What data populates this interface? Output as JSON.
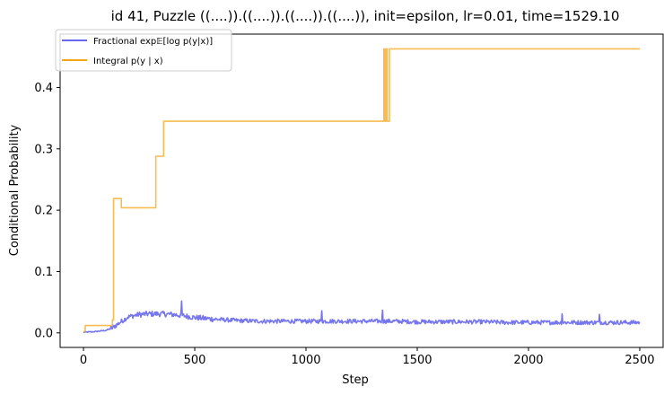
{
  "chart_data": {
    "type": "line",
    "title": "id 41, Puzzle ((....)).((....)).((....)).((....)), init=epsilon, lr=0.01, time=1529.10",
    "xlabel": "Step",
    "ylabel": "Conditional Probability",
    "xlim": [
      -105,
      2605
    ],
    "ylim": [
      -0.0237,
      0.487
    ],
    "xticks": [
      0,
      500,
      1000,
      1500,
      2000,
      2500
    ],
    "yticks": [
      0.0,
      0.1,
      0.2,
      0.3,
      0.4
    ],
    "xtick_labels": [
      "0",
      "500",
      "1000",
      "1500",
      "2000",
      "2500"
    ],
    "ytick_labels": [
      "0.0",
      "0.1",
      "0.2",
      "0.3",
      "0.4"
    ],
    "grid": false,
    "legend_position": "top-left",
    "series": [
      {
        "name": "Fractional exp𝔼[log p(y|x)]",
        "color": "#6666ee",
        "style": "noisy",
        "x": [
          0,
          50,
          100,
          130,
          160,
          200,
          250,
          300,
          350,
          400,
          450,
          500,
          600,
          700,
          800,
          900,
          1000,
          1100,
          1200,
          1300,
          1400,
          1500,
          1600,
          1700,
          1800,
          1900,
          2000,
          2100,
          2200,
          2300,
          2400,
          2500
        ],
        "values": [
          0.001,
          0.002,
          0.004,
          0.008,
          0.016,
          0.026,
          0.03,
          0.031,
          0.031,
          0.03,
          0.028,
          0.025,
          0.022,
          0.02,
          0.019,
          0.019,
          0.019,
          0.019,
          0.019,
          0.019,
          0.019,
          0.018,
          0.018,
          0.018,
          0.018,
          0.017,
          0.017,
          0.017,
          0.017,
          0.017,
          0.017,
          0.017
        ],
        "spikes": [
          [
            440,
            0.052
          ],
          [
            1070,
            0.036
          ],
          [
            1345,
            0.037
          ],
          [
            2150,
            0.031
          ],
          [
            2320,
            0.03
          ]
        ]
      },
      {
        "name": "Integral p(y | x)",
        "color": "#f6a516",
        "style": "steps",
        "x": [
          0,
          8,
          10,
          120,
          130,
          135,
          170,
          325,
          350,
          360,
          1345,
          1350,
          1355,
          1360,
          1365,
          1375,
          1380,
          2500
        ],
        "values": [
          0.002,
          0.012,
          0.012,
          0.012,
          0.021,
          0.219,
          0.204,
          0.288,
          0.288,
          0.345,
          0.345,
          0.463,
          0.345,
          0.463,
          0.345,
          0.463,
          0.463,
          0.463
        ]
      }
    ]
  }
}
